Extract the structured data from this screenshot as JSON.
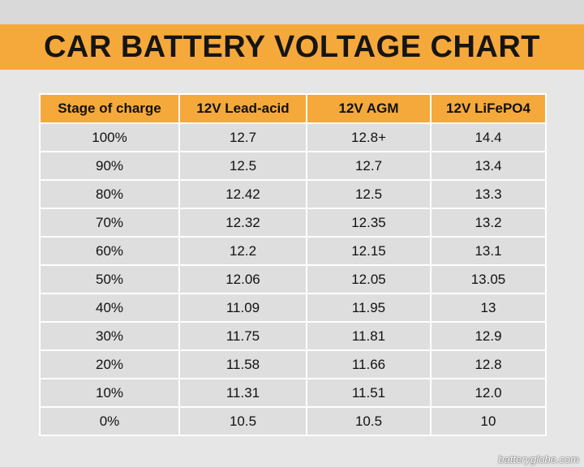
{
  "title": "CAR BATTERY VOLTAGE CHART",
  "watermark": "batteryglobe.com",
  "colors": {
    "header_fill": "#f5a93b",
    "cell_fill": "#dedede",
    "background": "#e6e6e6"
  },
  "chart_data": {
    "type": "table",
    "title": "CAR BATTERY VOLTAGE CHART",
    "columns": [
      "Stage of charge",
      "12V Lead-acid",
      "12V AGM",
      "12V LiFePO4"
    ],
    "rows": [
      [
        "100%",
        "12.7",
        "12.8+",
        "14.4"
      ],
      [
        "90%",
        "12.5",
        "12.7",
        "13.4"
      ],
      [
        "80%",
        "12.42",
        "12.5",
        "13.3"
      ],
      [
        "70%",
        "12.32",
        "12.35",
        "13.2"
      ],
      [
        "60%",
        "12.2",
        "12.15",
        "13.1"
      ],
      [
        "50%",
        "12.06",
        "12.05",
        "13.05"
      ],
      [
        "40%",
        "11.09",
        "11.95",
        "13"
      ],
      [
        "30%",
        "11.75",
        "11.81",
        "12.9"
      ],
      [
        "20%",
        "11.58",
        "11.66",
        "12.8"
      ],
      [
        "10%",
        "11.31",
        "11.51",
        "12.0"
      ],
      [
        "0%",
        "10.5",
        "10.5",
        "10"
      ]
    ]
  }
}
